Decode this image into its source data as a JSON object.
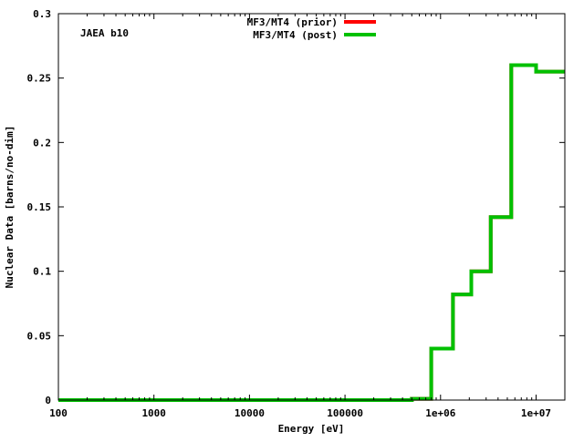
{
  "chart_data": {
    "type": "line",
    "title": "",
    "annotation": "JAEA b10",
    "xlabel": "Energy [eV]",
    "ylabel": "Nuclear Data [barns/no-dim]",
    "x_scale": "log",
    "xlim": [
      100,
      20000000
    ],
    "ylim": [
      0,
      0.3
    ],
    "grid": false,
    "legend_position": "top-center",
    "x_ticks": [
      {
        "value": 100,
        "label": "100"
      },
      {
        "value": 1000,
        "label": "1000"
      },
      {
        "value": 10000,
        "label": "10000"
      },
      {
        "value": 100000,
        "label": "100000"
      },
      {
        "value": 1000000,
        "label": "1e+06"
      },
      {
        "value": 10000000,
        "label": "1e+07"
      }
    ],
    "y_ticks": [
      {
        "value": 0,
        "label": "0"
      },
      {
        "value": 0.05,
        "label": "0.05"
      },
      {
        "value": 0.1,
        "label": "0.1"
      },
      {
        "value": 0.15,
        "label": "0.15"
      },
      {
        "value": 0.2,
        "label": "0.2"
      },
      {
        "value": 0.25,
        "label": "0.25"
      },
      {
        "value": 0.3,
        "label": "0.3"
      }
    ],
    "series": [
      {
        "name": "MF3/MT4 (prior)",
        "color": "#ff0000",
        "x": [
          100,
          500000,
          800000,
          1350000,
          2100000,
          3350000,
          5500000,
          10000000,
          20000000
        ],
        "y": [
          0,
          0.001,
          0.04,
          0.082,
          0.1,
          0.142,
          0.26,
          0.255,
          0.255
        ]
      },
      {
        "name": "MF3/MT4 (post)",
        "color": "#00c000",
        "x": [
          100,
          500000,
          800000,
          1350000,
          2100000,
          3350000,
          5500000,
          10000000,
          20000000
        ],
        "y": [
          0,
          0.001,
          0.04,
          0.082,
          0.1,
          0.142,
          0.26,
          0.255,
          0.255
        ]
      }
    ]
  }
}
